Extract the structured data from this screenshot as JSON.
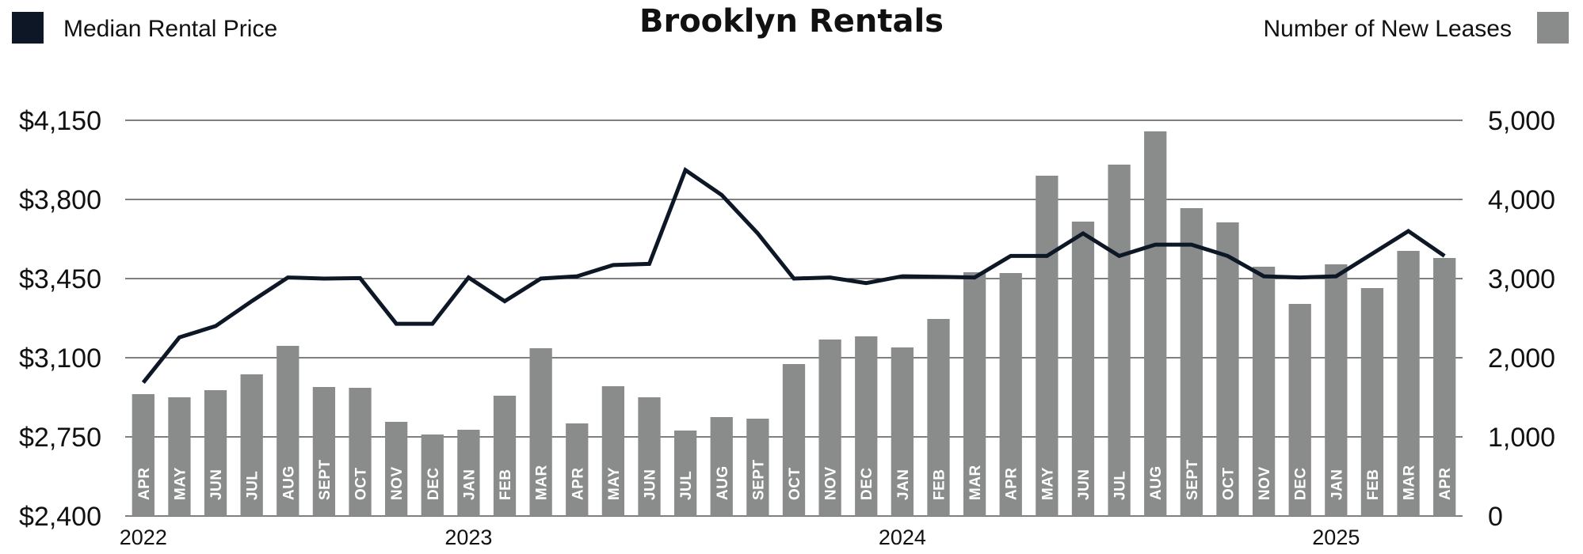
{
  "chart_data": {
    "type": "bar",
    "title": "Brooklyn Rentals",
    "legend": {
      "line_label": "Median Rental Price",
      "bar_label": "Number of New Leases",
      "placement": "top"
    },
    "colors": {
      "line": "#0d1726",
      "bars": "#8a8c8c",
      "grid": "#333333",
      "month_text": "#ffffff"
    },
    "categories": [
      "APR",
      "MAY",
      "JUN",
      "JUL",
      "AUG",
      "SEPT",
      "OCT",
      "NOV",
      "DEC",
      "JAN",
      "FEB",
      "MAR",
      "APR",
      "MAY",
      "JUN",
      "JUL",
      "AUG",
      "SEPT",
      "OCT",
      "NOV",
      "DEC",
      "JAN",
      "FEB",
      "MAR",
      "APR",
      "MAY",
      "JUN",
      "JUL",
      "AUG",
      "SEPT",
      "OCT",
      "NOV",
      "DEC",
      "JAN",
      "FEB",
      "MAR",
      "APR"
    ],
    "years": [
      {
        "label": "2022",
        "start_index": 0
      },
      {
        "label": "2023",
        "start_index": 9
      },
      {
        "label": "2024",
        "start_index": 21
      },
      {
        "label": "2025",
        "start_index": 33
      }
    ],
    "series": [
      {
        "name": "Number of New Leases",
        "type": "bar",
        "axis": "right",
        "values": [
          1540,
          1500,
          1590,
          1790,
          2150,
          1630,
          1620,
          1190,
          1030,
          1090,
          1520,
          2120,
          1170,
          1640,
          1500,
          1080,
          1250,
          1230,
          1920,
          2230,
          2270,
          2130,
          2490,
          3080,
          3070,
          4300,
          3720,
          4440,
          4860,
          3890,
          3710,
          3150,
          2680,
          3180,
          2880,
          3350,
          3260
        ]
      },
      {
        "name": "Median Rental Price",
        "type": "line",
        "axis": "left",
        "values": [
          2990,
          3190,
          3240,
          3350,
          3455,
          3450,
          3452,
          3250,
          3250,
          3455,
          3350,
          3450,
          3460,
          3510,
          3515,
          3930,
          3820,
          3650,
          3450,
          3455,
          3430,
          3460,
          3458,
          3455,
          3550,
          3550,
          3650,
          3550,
          3600,
          3600,
          3550,
          3460,
          3455,
          3460,
          3560,
          3660,
          3550
        ]
      }
    ],
    "y_left": {
      "min": 2400,
      "max": 4150,
      "ticks": [
        "$4,150",
        "$3,800",
        "$3,450",
        "$3,100",
        "$2,750",
        "$2,400"
      ]
    },
    "y_right": {
      "min": 0,
      "max": 5000,
      "ticks": [
        "5,000",
        "4,000",
        "3,000",
        "2,000",
        "1,000",
        "0"
      ]
    },
    "grid": true
  }
}
